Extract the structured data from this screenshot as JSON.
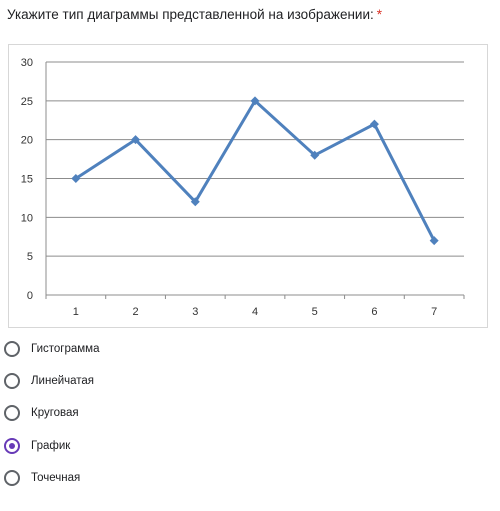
{
  "question": {
    "text": "Укажите тип диаграммы представленной на изображении:",
    "required_mark": "*"
  },
  "colors": {
    "series": "#4f81bd",
    "accent": "#673ab7",
    "required": "#d93025"
  },
  "chart_data": {
    "type": "line",
    "title": "",
    "xlabel": "",
    "ylabel": "",
    "categories": [
      "1",
      "2",
      "3",
      "4",
      "5",
      "6",
      "7"
    ],
    "series": [
      {
        "values": [
          15,
          20,
          12,
          25,
          18,
          22,
          7
        ]
      }
    ],
    "ylim": [
      0,
      30
    ],
    "yticks": [
      "0",
      "5",
      "10",
      "15",
      "20",
      "25",
      "30"
    ],
    "grid": true,
    "marker": "diamond"
  },
  "options": [
    {
      "label": "Гистограмма",
      "checked": false
    },
    {
      "label": "Линейчатая",
      "checked": false
    },
    {
      "label": "Круговая",
      "checked": false
    },
    {
      "label": "График",
      "checked": true
    },
    {
      "label": "Точечная",
      "checked": false
    }
  ]
}
